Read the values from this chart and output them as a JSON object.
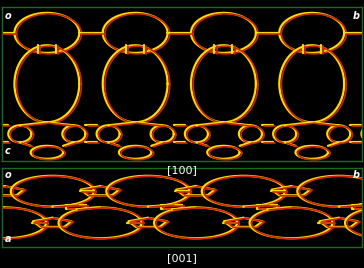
{
  "fig_width": 3.64,
  "fig_height": 2.68,
  "dpi": 100,
  "bg_color": "#000000",
  "border_color": "#1a6e1a",
  "top_panel": {
    "label_tl": "o",
    "label_tr": "b",
    "label_bl": "c",
    "axis_label": "[100]"
  },
  "bottom_panel": {
    "label_tl": "o",
    "label_tr": "b",
    "label_bl": "a",
    "axis_label": "[001]"
  },
  "yellow_color": "#ffdd00",
  "red_color": "#cc2200",
  "label_color": "#ffffff",
  "label_fontsize": 7,
  "axis_label_fontsize": 8,
  "lw_yellow": 1.6,
  "lw_red": 1.2
}
